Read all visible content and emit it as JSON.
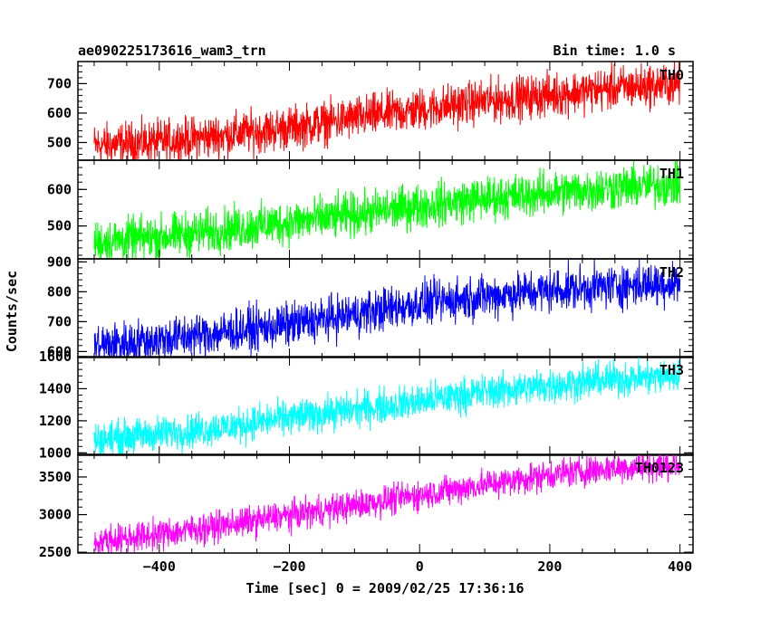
{
  "title_left": "ae090225173616_wam3_trn",
  "title_right": "Bin time: 1.0 s",
  "chart_data": {
    "type": "line",
    "xlabel": "Time [sec] 0 = 2009/02/25 17:36:16",
    "ylabel": "Counts/sec",
    "xlim": [
      -525,
      420
    ],
    "x_ticks": [
      -400,
      -200,
      0,
      200,
      400
    ],
    "x_tick_labels": [
      "−400",
      "−200",
      "0",
      "200",
      "400"
    ],
    "x_start": -500,
    "x_end": 400,
    "panels": [
      {
        "name": "TH0",
        "color": "#ff0000",
        "ylim": [
          440,
          775
        ],
        "y_ticks": [
          500,
          600,
          700
        ],
        "y_tick_labels": [
          "500",
          "600",
          "700"
        ],
        "trend_x": [
          -500,
          -400,
          -300,
          -200,
          -100,
          0,
          100,
          200,
          300,
          400
        ],
        "trend_y": [
          490,
          502,
          525,
          550,
          582,
          612,
          640,
          662,
          685,
          700
        ],
        "amplitude": 40
      },
      {
        "name": "TH1",
        "color": "#00ff00",
        "ylim": [
          410,
          680
        ],
        "y_ticks": [
          500,
          600
        ],
        "y_tick_labels": [
          "500",
          "600"
        ],
        "trend_x": [
          -500,
          -400,
          -300,
          -200,
          -100,
          0,
          100,
          200,
          300,
          400
        ],
        "trend_y": [
          455,
          470,
          490,
          510,
          530,
          555,
          575,
          590,
          605,
          615
        ],
        "amplitude": 33
      },
      {
        "name": "TH2",
        "color": "#0000ff",
        "ylim": [
          580,
          910
        ],
        "y_ticks": [
          600,
          700,
          800,
          900
        ],
        "y_tick_labels": [
          "600",
          "700",
          "800",
          "900"
        ],
        "trend_x": [
          -500,
          -400,
          -300,
          -200,
          -100,
          0,
          100,
          200,
          300,
          400
        ],
        "trend_y": [
          620,
          640,
          665,
          690,
          725,
          760,
          785,
          805,
          820,
          830
        ],
        "amplitude": 40
      },
      {
        "name": "TH3",
        "color": "#00ffff",
        "ylim": [
          985,
          1600
        ],
        "y_ticks": [
          1000,
          1200,
          1400,
          1600
        ],
        "y_tick_labels": [
          "1000",
          "1200",
          "1400",
          "1600"
        ],
        "trend_x": [
          -500,
          -400,
          -300,
          -200,
          -100,
          0,
          100,
          200,
          300,
          400
        ],
        "trend_y": [
          1080,
          1120,
          1160,
          1220,
          1270,
          1320,
          1380,
          1420,
          1460,
          1480
        ],
        "amplitude": 60
      },
      {
        "name": "TH0123",
        "color": "#ff00ff",
        "ylim": [
          2490,
          3800
        ],
        "y_ticks": [
          2500,
          3000,
          3500
        ],
        "y_tick_labels": [
          "2500",
          "3000",
          "3500"
        ],
        "trend_x": [
          -500,
          -400,
          -300,
          -200,
          -100,
          0,
          100,
          200,
          300,
          400
        ],
        "trend_y": [
          2640,
          2740,
          2860,
          2990,
          3120,
          3260,
          3400,
          3530,
          3620,
          3660
        ],
        "amplitude": 110
      }
    ]
  }
}
